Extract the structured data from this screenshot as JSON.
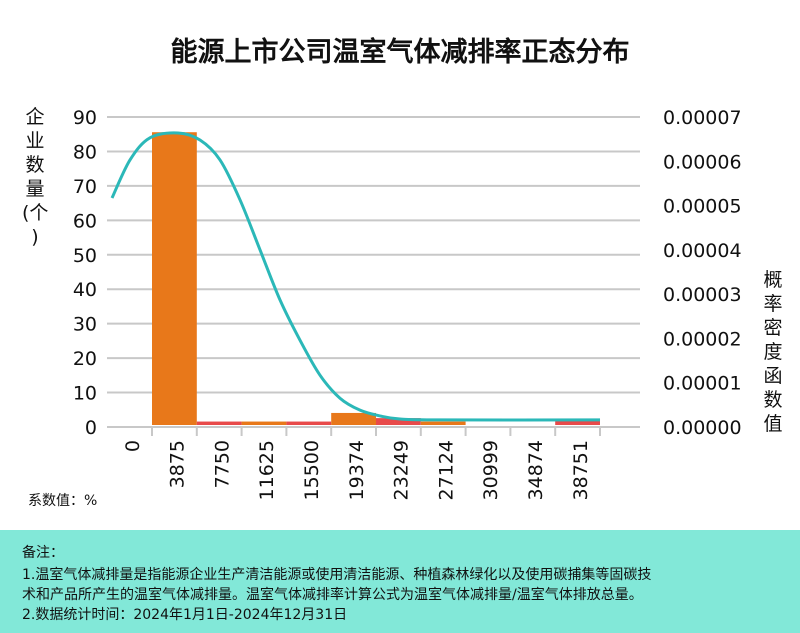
{
  "title": "能源上市公司温室气体减排率正态分布",
  "unit_label": "系数值：%",
  "notes": {
    "heading": "备注：",
    "line1": "1.温室气体减排量是指能源企业生产清洁能源或使用清洁能源、种植森林绿化以及使用碳捕集等固碳技",
    "line2": "术和产品所产生的温室气体减排量。温室气体减排率计算公式为温室气体减排量/温室气体排放总量。",
    "line3": "2.数据统计时间：2024年1月1日-2024年12月31日"
  },
  "chart_data": {
    "type": "bar",
    "title": "能源上市公司温室气体减排率正态分布",
    "ylabel": "企业数量(个)",
    "y2label": "概率密度函数值",
    "xlabel": "",
    "x_tick_labels": [
      "0",
      "3875",
      "7750",
      "11625",
      "15500",
      "19374",
      "23249",
      "27124",
      "30999",
      "34874",
      "38751"
    ],
    "bins": [
      [
        0,
        3875
      ],
      [
        3875,
        7750
      ],
      [
        7750,
        11625
      ],
      [
        11625,
        15500
      ],
      [
        15500,
        19374
      ],
      [
        19374,
        23249
      ],
      [
        23249,
        27124
      ],
      [
        27124,
        30999
      ],
      [
        30999,
        34874
      ],
      [
        34874,
        38751
      ]
    ],
    "values": [
      85,
      1,
      1,
      1,
      3.5,
      2,
      1,
      0,
      0,
      1.5
    ],
    "bar_colors": [
      "#E8781A",
      "#E84A4A",
      "#E8781A",
      "#E84A4A",
      "#E8781A",
      "#E84A4A",
      "#E8781A",
      "#E84A4A",
      "#E8781A",
      "#E84A4A"
    ],
    "ylim": [
      0,
      90
    ],
    "y_ticks": [
      0,
      10,
      20,
      30,
      40,
      50,
      60,
      70,
      80,
      90
    ],
    "y2lim": [
      0,
      7e-05
    ],
    "y2_ticks": [
      "0.00000",
      "0.00001",
      "0.00002",
      "0.00003",
      "0.00004",
      "0.00005",
      "0.00006",
      "0.00007"
    ],
    "grid": true,
    "curve": {
      "color": "#2BB8B8",
      "x": [
        -3460,
        -1903,
        -173,
        2249,
        4152,
        5882,
        7612,
        9342,
        11071,
        12801,
        14531,
        16261,
        17991,
        19721,
        21451,
        24911,
        38751
      ],
      "y": [
        5.17e-05,
        6.03e-05,
        6.53e-05,
        6.64e-05,
        6.48e-05,
        6.03e-05,
        5.13e-05,
        4e-05,
        2.87e-05,
        1.96e-05,
        1.17e-05,
        6.5e-06,
        3.8e-06,
        2.5e-06,
        1.8e-06,
        1.6e-06,
        1.6e-06
      ]
    }
  }
}
